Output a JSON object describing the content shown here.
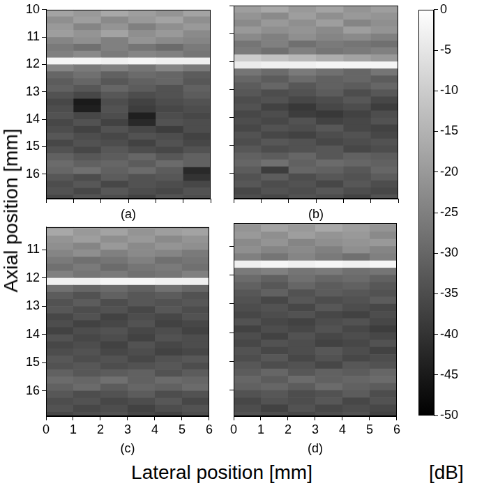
{
  "chart_data": {
    "type": "heatmap",
    "xlabel": "Lateral position [mm]",
    "ylabel": "Axial position [mm]",
    "colorbar": {
      "range": [
        -50,
        0
      ],
      "ticks": [
        -50,
        -45,
        -40,
        -35,
        -30,
        -25,
        -20,
        -15,
        -10,
        -5,
        0
      ],
      "label": "[dB]"
    },
    "panels": [
      {
        "title": "(a)",
        "xlim": [
          0,
          6
        ],
        "xticks": [
          0,
          1,
          2,
          3,
          4,
          5,
          6
        ],
        "ylim": [
          10,
          16.9
        ],
        "yticks": [
          10,
          11,
          12,
          13,
          14,
          15,
          16
        ],
        "tick_labels": "y",
        "x": [
          0.5,
          1.5,
          2.5,
          3.5,
          4.5,
          5.5
        ],
        "y": [
          10.125,
          10.375,
          10.625,
          10.875,
          11.125,
          11.375,
          11.625,
          11.875,
          12.125,
          12.375,
          12.625,
          12.875,
          13.125,
          13.375,
          13.625,
          13.875,
          14.125,
          14.375,
          14.625,
          14.875,
          15.125,
          15.375,
          15.625,
          15.875,
          16.125,
          16.375,
          16.625,
          16.875
        ],
        "cells": [
          [
            -18,
            -20,
            -17,
            -19,
            -21,
            -18
          ],
          [
            -22,
            -19,
            -23,
            -20,
            -18,
            -22
          ],
          [
            -20,
            -24,
            -21,
            -25,
            -22,
            -20
          ],
          [
            -19,
            -21,
            -18,
            -22,
            -20,
            -23
          ],
          [
            -24,
            -22,
            -25,
            -21,
            -23,
            -24
          ],
          [
            -26,
            -28,
            -25,
            -27,
            -29,
            -26
          ],
          [
            -25,
            -23,
            -26,
            -24,
            -25,
            -27
          ],
          [
            -2,
            -2,
            -3,
            -2,
            -3,
            -3
          ],
          [
            -24,
            -26,
            -25,
            -27,
            -24,
            -26
          ],
          [
            -30,
            -28,
            -31,
            -29,
            -30,
            -32
          ],
          [
            -32,
            -30,
            -33,
            -31,
            -30,
            -33
          ],
          [
            -31,
            -33,
            -30,
            -32,
            -34,
            -31
          ],
          [
            -34,
            -36,
            -33,
            -35,
            -34,
            -32
          ],
          [
            -36,
            -45,
            -35,
            -37,
            -35,
            -34
          ],
          [
            -35,
            -44,
            -34,
            -38,
            -36,
            -35
          ],
          [
            -34,
            -36,
            -35,
            -44,
            -35,
            -36
          ],
          [
            -36,
            -34,
            -37,
            -42,
            -34,
            -35
          ],
          [
            -35,
            -37,
            -34,
            -36,
            -38,
            -35
          ],
          [
            -33,
            -35,
            -36,
            -34,
            -35,
            -37
          ],
          [
            -36,
            -34,
            -35,
            -37,
            -34,
            -36
          ],
          [
            -34,
            -36,
            -33,
            -35,
            -36,
            -34
          ],
          [
            -31,
            -33,
            -32,
            -30,
            -33,
            -31
          ],
          [
            -29,
            -31,
            -30,
            -32,
            -29,
            -31
          ],
          [
            -30,
            -28,
            -31,
            -29,
            -32,
            -42
          ],
          [
            -33,
            -35,
            -32,
            -34,
            -33,
            -40
          ],
          [
            -35,
            -33,
            -36,
            -34,
            -35,
            -36
          ],
          [
            -34,
            -36,
            -33,
            -35,
            -36,
            -34
          ],
          [
            -36,
            -34,
            -35,
            -37,
            -34,
            -35
          ]
        ]
      },
      {
        "title": "(b)",
        "xlim": [
          0,
          6
        ],
        "xticks": [
          0,
          1,
          2,
          3,
          4,
          5,
          6
        ],
        "ylim": [
          10,
          16.9
        ],
        "yticks": [
          10,
          11,
          12,
          13,
          14,
          15,
          16
        ],
        "tick_labels": false,
        "x": [
          0.5,
          1.5,
          2.5,
          3.5,
          4.5,
          5.5
        ],
        "y": [
          10.125,
          10.375,
          10.625,
          10.875,
          11.125,
          11.375,
          11.625,
          11.875,
          12.125,
          12.375,
          12.625,
          12.875,
          13.125,
          13.375,
          13.625,
          13.875,
          14.125,
          14.375,
          14.625,
          14.875,
          15.125,
          15.375,
          15.625,
          15.875,
          16.125,
          16.375,
          16.625,
          16.875
        ],
        "cells": [
          [
            -19,
            -17,
            -20,
            -18,
            -21,
            -19
          ],
          [
            -21,
            -23,
            -19,
            -22,
            -20,
            -21
          ],
          [
            -23,
            -20,
            -22,
            -19,
            -24,
            -22
          ],
          [
            -20,
            -22,
            -21,
            -23,
            -19,
            -21
          ],
          [
            -23,
            -25,
            -22,
            -24,
            -23,
            -25
          ],
          [
            -27,
            -25,
            -28,
            -26,
            -27,
            -28
          ],
          [
            -26,
            -28,
            -25,
            -27,
            -26,
            -25
          ],
          [
            -10,
            -12,
            -14,
            -16,
            -18,
            -20
          ],
          [
            -4,
            -3,
            -3,
            -2,
            -2,
            -2
          ],
          [
            -27,
            -29,
            -26,
            -28,
            -30,
            -27
          ],
          [
            -30,
            -32,
            -29,
            -31,
            -30,
            -32
          ],
          [
            -32,
            -30,
            -33,
            -31,
            -32,
            -30
          ],
          [
            -33,
            -35,
            -34,
            -32,
            -35,
            -33
          ],
          [
            -35,
            -34,
            -36,
            -35,
            -33,
            -36
          ],
          [
            -34,
            -37,
            -39,
            -36,
            -35,
            -38
          ],
          [
            -36,
            -35,
            -38,
            -39,
            -37,
            -35
          ],
          [
            -35,
            -36,
            -34,
            -37,
            -36,
            -34
          ],
          [
            -36,
            -34,
            -35,
            -33,
            -36,
            -37
          ],
          [
            -34,
            -36,
            -37,
            -35,
            -34,
            -36
          ],
          [
            -35,
            -33,
            -34,
            -36,
            -35,
            -34
          ],
          [
            -33,
            -35,
            -34,
            -33,
            -36,
            -35
          ],
          [
            -31,
            -32,
            -30,
            -33,
            -31,
            -32
          ],
          [
            -30,
            -28,
            -31,
            -29,
            -30,
            -31
          ],
          [
            -32,
            -38,
            -30,
            -31,
            -33,
            -30
          ],
          [
            -34,
            -32,
            -35,
            -33,
            -34,
            -32
          ],
          [
            -33,
            -35,
            -34,
            -36,
            -33,
            -35
          ],
          [
            -36,
            -34,
            -35,
            -33,
            -35,
            -36
          ],
          [
            -35,
            -36,
            -34,
            -35,
            -37,
            -34
          ]
        ]
      },
      {
        "title": "(c)",
        "xlim": [
          0,
          6
        ],
        "xticks": [
          0,
          1,
          2,
          3,
          4,
          5,
          6
        ],
        "ylim": [
          10.2,
          16.9
        ],
        "yticks": [
          11,
          12,
          13,
          14,
          15,
          16
        ],
        "x": [
          0.5,
          1.5,
          2.5,
          3.5,
          4.5,
          5.5
        ],
        "y": [
          10.125,
          10.375,
          10.625,
          10.875,
          11.125,
          11.375,
          11.625,
          11.875,
          12.125,
          12.375,
          12.625,
          12.875,
          13.125,
          13.375,
          13.625,
          13.875,
          14.125,
          14.375,
          14.625,
          14.875,
          15.125,
          15.375,
          15.625,
          15.875,
          16.125,
          16.375,
          16.625,
          16.875
        ],
        "cells": [
          [
            -20,
            -18,
            -21,
            -19,
            -20,
            -22
          ],
          [
            -17,
            -20,
            -18,
            -21,
            -19,
            -18
          ],
          [
            -21,
            -19,
            -22,
            -20,
            -23,
            -21
          ],
          [
            -22,
            -24,
            -20,
            -23,
            -21,
            -22
          ],
          [
            -24,
            -22,
            -25,
            -23,
            -24,
            -26
          ],
          [
            -26,
            -28,
            -27,
            -25,
            -28,
            -27
          ],
          [
            -28,
            -26,
            -29,
            -27,
            -26,
            -28
          ],
          [
            -25,
            -27,
            -26,
            -28,
            -27,
            -25
          ],
          [
            -3,
            -3,
            -2,
            -2,
            -3,
            -3
          ],
          [
            -28,
            -30,
            -29,
            -31,
            -28,
            -30
          ],
          [
            -32,
            -34,
            -31,
            -33,
            -32,
            -34
          ],
          [
            -34,
            -32,
            -35,
            -33,
            -34,
            -33
          ],
          [
            -33,
            -35,
            -34,
            -36,
            -33,
            -35
          ],
          [
            -36,
            -34,
            -37,
            -35,
            -36,
            -34
          ],
          [
            -35,
            -37,
            -36,
            -34,
            -37,
            -36
          ],
          [
            -37,
            -35,
            -34,
            -36,
            -35,
            -37
          ],
          [
            -34,
            -36,
            -35,
            -37,
            -34,
            -35
          ],
          [
            -36,
            -35,
            -37,
            -34,
            -36,
            -35
          ],
          [
            -35,
            -34,
            -36,
            -35,
            -37,
            -36
          ],
          [
            -33,
            -35,
            -34,
            -36,
            -34,
            -33
          ],
          [
            -34,
            -33,
            -35,
            -34,
            -33,
            -35
          ],
          [
            -31,
            -33,
            -32,
            -31,
            -34,
            -32
          ],
          [
            -29,
            -30,
            -28,
            -31,
            -29,
            -30
          ],
          [
            -31,
            -29,
            -32,
            -30,
            -31,
            -29
          ],
          [
            -33,
            -35,
            -34,
            -32,
            -35,
            -34
          ],
          [
            -35,
            -34,
            -36,
            -35,
            -33,
            -36
          ],
          [
            -34,
            -36,
            -35,
            -37,
            -35,
            -34
          ],
          [
            -36,
            -35,
            -34,
            -36,
            -37,
            -35
          ]
        ]
      },
      {
        "title": "(d)",
        "xlim": [
          0,
          6
        ],
        "xticks": [
          0,
          1,
          2,
          3,
          4,
          5,
          6
        ],
        "ylim": [
          10.2,
          16.9
        ],
        "yticks": [
          11,
          12,
          13,
          14,
          15,
          16
        ],
        "tick_labels": "x",
        "x": [
          0.5,
          1.5,
          2.5,
          3.5,
          4.5,
          5.5
        ],
        "y": [
          10.125,
          10.375,
          10.625,
          10.875,
          11.125,
          11.375,
          11.625,
          11.875,
          12.125,
          12.375,
          12.625,
          12.875,
          13.125,
          13.375,
          13.625,
          13.875,
          14.125,
          14.375,
          14.625,
          14.875,
          15.125,
          15.375,
          15.625,
          15.875,
          16.125,
          16.375,
          16.625,
          16.875
        ],
        "cells": [
          [
            -19,
            -21,
            -18,
            -20,
            -22,
            -19
          ],
          [
            -21,
            -18,
            -20,
            -17,
            -19,
            -21
          ],
          [
            -20,
            -22,
            -19,
            -21,
            -20,
            -23
          ],
          [
            -23,
            -21,
            -24,
            -22,
            -21,
            -20
          ],
          [
            -22,
            -24,
            -23,
            -25,
            -22,
            -24
          ],
          [
            -25,
            -27,
            -24,
            -26,
            -28,
            -25
          ],
          [
            -3,
            -2,
            -3,
            -2,
            -3,
            -2
          ],
          [
            -26,
            -25,
            -27,
            -26,
            -28,
            -27
          ],
          [
            -29,
            -31,
            -28,
            -30,
            -29,
            -31
          ],
          [
            -31,
            -33,
            -30,
            -32,
            -31,
            -33
          ],
          [
            -33,
            -31,
            -34,
            -32,
            -33,
            -34
          ],
          [
            -34,
            -36,
            -33,
            -35,
            -34,
            -32
          ],
          [
            -35,
            -34,
            -36,
            -33,
            -35,
            -36
          ],
          [
            -36,
            -35,
            -34,
            -36,
            -37,
            -35
          ],
          [
            -34,
            -36,
            -37,
            -35,
            -34,
            -36
          ],
          [
            -37,
            -35,
            -36,
            -34,
            -36,
            -38
          ],
          [
            -35,
            -37,
            -34,
            -36,
            -35,
            -36
          ],
          [
            -36,
            -34,
            -35,
            -37,
            -36,
            -34
          ],
          [
            -34,
            -36,
            -35,
            -33,
            -35,
            -37
          ],
          [
            -35,
            -33,
            -36,
            -34,
            -36,
            -35
          ],
          [
            -33,
            -35,
            -34,
            -36,
            -33,
            -34
          ],
          [
            -32,
            -30,
            -33,
            -31,
            -32,
            -30
          ],
          [
            -30,
            -32,
            -29,
            -31,
            -30,
            -29
          ],
          [
            -31,
            -30,
            -32,
            -29,
            -31,
            -32
          ],
          [
            -34,
            -33,
            -35,
            -34,
            -32,
            -35
          ],
          [
            -36,
            -34,
            -35,
            -33,
            -36,
            -34
          ],
          [
            -35,
            -37,
            -34,
            -36,
            -35,
            -36
          ],
          [
            -34,
            -35,
            -36,
            -35,
            -34,
            -37
          ]
        ]
      }
    ]
  }
}
